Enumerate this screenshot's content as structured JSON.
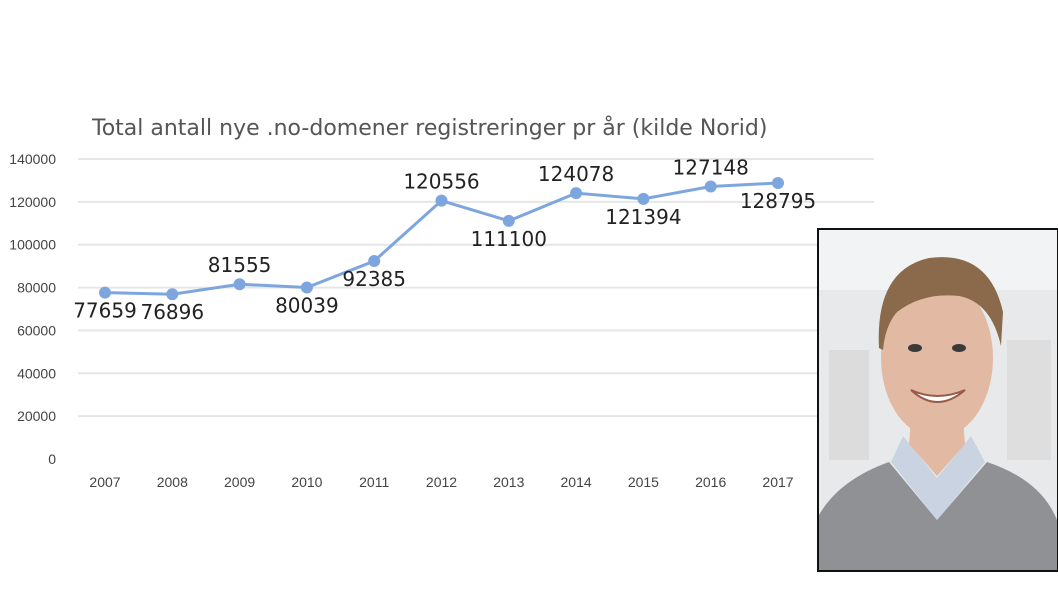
{
  "chart_data": {
    "type": "line",
    "title": "Total antall nye .no-domener registreringer pr år (kilde Norid)",
    "categories": [
      "2007",
      "2008",
      "2009",
      "2010",
      "2011",
      "2012",
      "2013",
      "2014",
      "2015",
      "2016",
      "2017"
    ],
    "values": [
      77659,
      76896,
      81555,
      80039,
      92385,
      120556,
      111100,
      124078,
      121394,
      127148,
      128795
    ],
    "ylim": [
      0,
      140000
    ],
    "yticks": [
      "0",
      "20000",
      "40000",
      "60000",
      "80000",
      "100000",
      "120000",
      "140000"
    ],
    "grid": true,
    "line_color": "#7ea6de",
    "label_positions": [
      "below",
      "below",
      "above",
      "below",
      "below",
      "above",
      "below",
      "above",
      "below",
      "above",
      "below"
    ]
  },
  "photo": {
    "colors": {
      "background": "#e8e9ea",
      "skin": "#e2b9a2",
      "hair": "#8a6a4a",
      "sweater": "#8f9194",
      "shirt": "#c9d3e2"
    }
  }
}
